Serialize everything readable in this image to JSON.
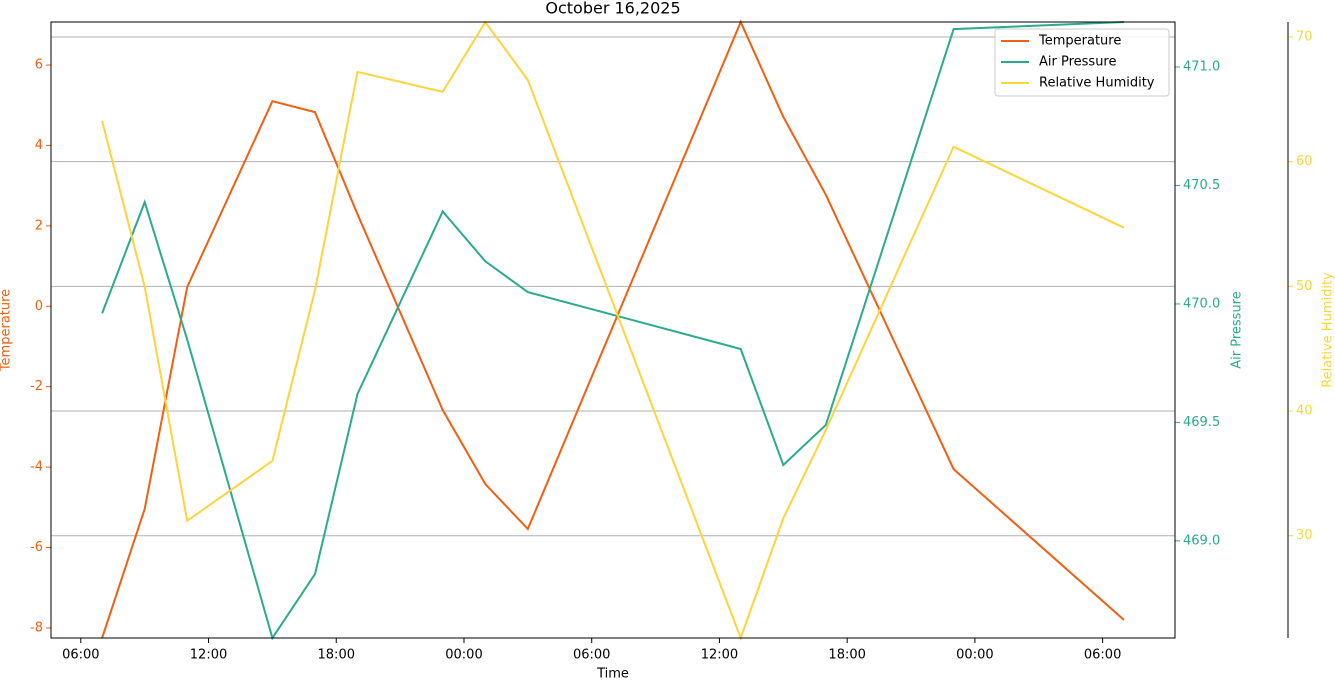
{
  "chart_data": {
    "type": "line",
    "title": "October 16,2025",
    "xlabel": "Time",
    "ylabel": "Temperature",
    "y2label": "Air Pressure",
    "y3label": "Relative Humidity",
    "x": [
      7,
      9,
      11,
      15,
      17,
      19,
      23,
      25,
      27,
      37,
      39,
      41,
      47,
      55
    ],
    "xlim": [
      4.6,
      57.4
    ],
    "xticks": [
      {
        "value": 6,
        "label": "06:00"
      },
      {
        "value": 12,
        "label": "12:00"
      },
      {
        "value": 18,
        "label": "18:00"
      },
      {
        "value": 24,
        "label": "00:00"
      },
      {
        "value": 30,
        "label": "06:00"
      },
      {
        "value": 36,
        "label": "12:00"
      },
      {
        "value": 42,
        "label": "18:00"
      },
      {
        "value": 48,
        "label": "00:00"
      },
      {
        "value": 54,
        "label": "06:00"
      }
    ],
    "ylim": [
      -8.25,
      7.07
    ],
    "yticks": [
      -8,
      -6,
      -4,
      -2,
      0,
      2,
      4,
      6
    ],
    "y2lim": [
      468.59,
      471.19
    ],
    "y2ticks": [
      {
        "value": 469,
        "label": "469.0"
      },
      469.5,
      {
        "value": 470,
        "label": "470.0"
      },
      470.5,
      {
        "value": 471,
        "label": "471.0"
      }
    ],
    "y3lim": [
      21.8,
      71.2
    ],
    "y3ticks": [
      30,
      40,
      50,
      60,
      70
    ],
    "grid_axis": "y3",
    "legend": "upper right",
    "series": [
      {
        "name": "Temperature",
        "color": "#ee6012",
        "axis": "y",
        "values": [
          -8.25,
          -5.04,
          0.48,
          5.1,
          4.83,
          2.29,
          -2.58,
          -4.42,
          -5.54,
          7.07,
          4.71,
          2.77,
          -4.05,
          -7.8
        ]
      },
      {
        "name": "Air Pressure",
        "color": "#2aab8e",
        "axis": "y2",
        "values": [
          469.96,
          470.43,
          469.85,
          468.59,
          468.86,
          469.62,
          470.39,
          470.18,
          470.05,
          469.81,
          469.32,
          469.49,
          471.16,
          471.19
        ]
      },
      {
        "name": "Relative Humidity",
        "color": "#fcd43c",
        "axis": "y3",
        "values": [
          63.27,
          49.96,
          31.2,
          36.0,
          49.7,
          67.2,
          65.6,
          71.2,
          66.55,
          21.8,
          31.4,
          38.5,
          61.2,
          54.7
        ]
      }
    ]
  }
}
